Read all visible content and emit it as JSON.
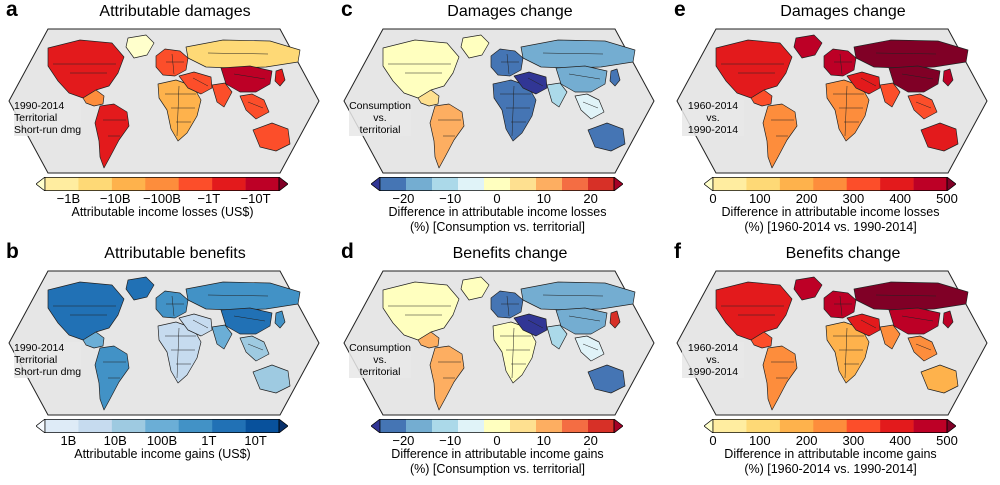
{
  "colors": {
    "ocean": "#e6e6e6",
    "border": "#222222",
    "nodata": "#ffffff",
    "ylorrd": [
      "#ffffcc",
      "#ffeda0",
      "#fed976",
      "#feb24c",
      "#fd8d3c",
      "#fc4e2a",
      "#e31a1c",
      "#bd0026",
      "#800026"
    ],
    "blues": [
      "#f7fbff",
      "#deebf7",
      "#c6dbef",
      "#9ecae1",
      "#6baed6",
      "#4292c6",
      "#2171b5",
      "#08519c",
      "#08306b"
    ],
    "rdylbu": [
      "#313695",
      "#4575b4",
      "#74add1",
      "#abd9e9",
      "#e0f3f8",
      "#ffffbf",
      "#fee090",
      "#fdae61",
      "#f46d43",
      "#d73027",
      "#a50026"
    ]
  },
  "panels": [
    {
      "letter": "a",
      "title": "Attributable damages",
      "note": [
        "1990-2014",
        "Territorial",
        "Short-run dmg"
      ],
      "note_align": "left",
      "palette": "ylorrd",
      "ticks": [
        "−1B",
        "−10B",
        "−100B",
        "−1T",
        "−10T"
      ],
      "caption": [
        "Attributable income losses (US$)"
      ],
      "fill": {
        "NA": 6,
        "GRN": 0,
        "CA": 4,
        "SA": 6,
        "EU": 5,
        "RU": 2,
        "AF": 3,
        "ME": 5,
        "SAS": 5,
        "CN": 7,
        "SEA": 5,
        "AU": 5,
        "JP": 6
      }
    },
    {
      "letter": "c",
      "title": "Damages change",
      "note": [
        "Consumption",
        "vs.",
        "territorial"
      ],
      "note_align": "center",
      "palette": "rdylbu",
      "ticks": [
        "−20",
        "−10",
        "0",
        "10",
        "20"
      ],
      "caption": [
        "Difference in attributable income losses",
        "(%) [Consumption vs. territorial]"
      ],
      "fill": {
        "NA": 5,
        "GRN": 5,
        "CA": 6,
        "SA": 7,
        "EU": 1,
        "RU": 2,
        "AF": 1,
        "ME": 0,
        "SAS": 3,
        "CN": 2,
        "SEA": 4,
        "AU": 1,
        "JP": 1
      }
    },
    {
      "letter": "e",
      "title": "Damages change",
      "note": [
        "1960-2014",
        "vs.",
        "1990-2014"
      ],
      "note_align": "center",
      "palette": "ylorrd",
      "ticks": [
        "0",
        "100",
        "200",
        "300",
        "400",
        "500"
      ],
      "caption": [
        "Difference in attributable income losses",
        "(%) [1960-2014 vs. 1990-2014]"
      ],
      "fill": {
        "NA": 6,
        "GRN": 7,
        "CA": 5,
        "SA": 4,
        "EU": 7,
        "RU": 8,
        "AF": 4,
        "ME": 6,
        "SAS": 5,
        "CN": 8,
        "SEA": 5,
        "AU": 6,
        "JP": 7
      }
    },
    {
      "letter": "b",
      "title": "Attributable benefits",
      "note": [
        "1990-2014",
        "Territorial",
        "Short-run dmg"
      ],
      "note_align": "left",
      "palette": "blues",
      "ticks": [
        "1B",
        "10B",
        "100B",
        "1T",
        "10T"
      ],
      "caption": [
        "Attributable income gains (US$)"
      ],
      "fill": {
        "NA": 6,
        "GRN": 6,
        "CA": 4,
        "SA": 5,
        "EU": 5,
        "RU": 5,
        "AF": 2,
        "ME": 2,
        "SAS": 4,
        "CN": 6,
        "SEA": 3,
        "AU": 3,
        "JP": 5
      }
    },
    {
      "letter": "d",
      "title": "Benefits change",
      "note": [
        "Consumption",
        "vs.",
        "territorial"
      ],
      "note_align": "center",
      "palette": "rdylbu",
      "ticks": [
        "−20",
        "−10",
        "0",
        "10",
        "20"
      ],
      "caption": [
        "Difference in attributable income gains",
        "(%) [Consumption vs. territorial]"
      ],
      "fill": {
        "NA": 5,
        "GRN": 5,
        "CA": 7,
        "SA": 7,
        "EU": 1,
        "RU": 2,
        "AF": 5,
        "ME": 0,
        "SAS": 3,
        "CN": 2,
        "SEA": 4,
        "AU": 1,
        "JP": 9
      }
    },
    {
      "letter": "f",
      "title": "Benefits change",
      "note": [
        "1960-2014",
        "vs.",
        "1990-2014"
      ],
      "note_align": "center",
      "palette": "ylorrd",
      "ticks": [
        "0",
        "100",
        "200",
        "300",
        "400",
        "500"
      ],
      "caption": [
        "Difference in attributable income gains",
        "(%) [1960-2014 vs. 1990-2014]"
      ],
      "fill": {
        "NA": 6,
        "GRN": 7,
        "CA": 5,
        "SA": 4,
        "EU": 7,
        "RU": 8,
        "AF": 3,
        "ME": 6,
        "SAS": 4,
        "CN": 7,
        "SEA": 4,
        "AU": 3,
        "JP": 7
      }
    }
  ]
}
